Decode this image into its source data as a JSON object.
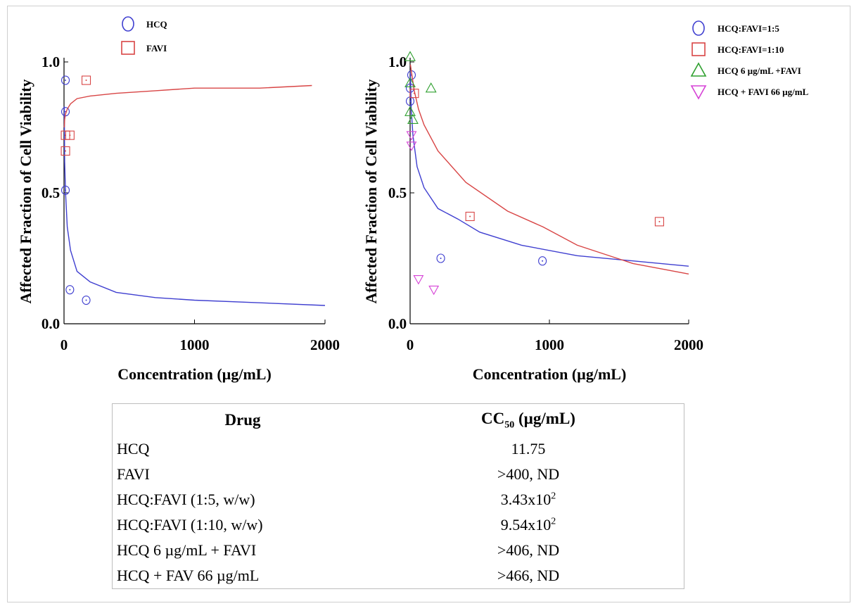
{
  "chart_data": [
    {
      "type": "scatter",
      "xlabel": "Concentration (µg/mL)",
      "ylabel": "Affected Fraction of Cell Viability",
      "xlim": [
        0,
        2000
      ],
      "ylim": [
        0,
        1
      ],
      "x_ticks": [
        "0",
        "1000",
        "2000"
      ],
      "y_ticks": [
        "0.0",
        "0.5",
        "1.0"
      ],
      "legend_position": "top-left",
      "series": [
        {
          "name": "HCQ",
          "marker": "circle",
          "color": "#3f3fd0",
          "points": [
            [
              11,
              0.93
            ],
            [
              11,
              0.81
            ],
            [
              11,
              0.51
            ],
            [
              45,
              0.13
            ],
            [
              170,
              0.09
            ]
          ],
          "fit": [
            [
              2,
              0.83
            ],
            [
              5,
              0.62
            ],
            [
              11.75,
              0.5
            ],
            [
              25,
              0.37
            ],
            [
              50,
              0.28
            ],
            [
              100,
              0.2
            ],
            [
              200,
              0.16
            ],
            [
              400,
              0.12
            ],
            [
              700,
              0.1
            ],
            [
              1000,
              0.09
            ],
            [
              1500,
              0.08
            ],
            [
              2000,
              0.07
            ]
          ]
        },
        {
          "name": "FAVI",
          "marker": "square",
          "color": "#d84545",
          "points": [
            [
              11,
              0.72
            ],
            [
              45,
              0.72
            ],
            [
              11,
              0.66
            ],
            [
              170,
              0.93
            ]
          ],
          "fit": [
            [
              2,
              0.75
            ],
            [
              5,
              0.78
            ],
            [
              11,
              0.8
            ],
            [
              25,
              0.82
            ],
            [
              50,
              0.84
            ],
            [
              100,
              0.86
            ],
            [
              200,
              0.87
            ],
            [
              400,
              0.88
            ],
            [
              700,
              0.89
            ],
            [
              1000,
              0.9
            ],
            [
              1500,
              0.9
            ],
            [
              1900,
              0.91
            ]
          ]
        }
      ]
    },
    {
      "type": "scatter",
      "xlabel": "Concentration (µg/mL)",
      "ylabel": "Affected Fraction of Cell Viability",
      "xlim": [
        0,
        2000
      ],
      "ylim": [
        0,
        1
      ],
      "x_ticks": [
        "0",
        "1000",
        "2000"
      ],
      "y_ticks": [
        "0.0",
        "0.5",
        "1.0"
      ],
      "legend_position": "top-right",
      "series": [
        {
          "name": "HCQ:FAVI=1:5",
          "marker": "circle",
          "color": "#3f3fd0",
          "points": [
            [
              0,
              0.9
            ],
            [
              0,
              0.85
            ],
            [
              10,
              0.95
            ],
            [
              220,
              0.25
            ],
            [
              950,
              0.24
            ]
          ],
          "fit": [
            [
              2,
              0.96
            ],
            [
              8,
              0.82
            ],
            [
              20,
              0.72
            ],
            [
              50,
              0.6
            ],
            [
              100,
              0.52
            ],
            [
              200,
              0.44
            ],
            [
              343,
              0.4
            ],
            [
              500,
              0.35
            ],
            [
              800,
              0.3
            ],
            [
              1200,
              0.26
            ],
            [
              1600,
              0.24
            ],
            [
              2000,
              0.22
            ]
          ]
        },
        {
          "name": "HCQ:FAVI=1:10",
          "marker": "square",
          "color": "#d84545",
          "points": [
            [
              30,
              0.88
            ],
            [
              430,
              0.41
            ],
            [
              1790,
              0.39
            ]
          ],
          "fit": [
            [
              2,
              0.99
            ],
            [
              10,
              0.96
            ],
            [
              30,
              0.89
            ],
            [
              60,
              0.82
            ],
            [
              100,
              0.76
            ],
            [
              200,
              0.66
            ],
            [
              400,
              0.54
            ],
            [
              700,
              0.43
            ],
            [
              954,
              0.37
            ],
            [
              1200,
              0.3
            ],
            [
              1600,
              0.23
            ],
            [
              2000,
              0.19
            ]
          ]
        },
        {
          "name": "HCQ 6 µg/mL +FAVI",
          "marker": "triangle-up",
          "color": "#2fa02f",
          "points": [
            [
              0,
              1.02
            ],
            [
              0,
              0.92
            ],
            [
              0,
              0.81
            ],
            [
              20,
              0.78
            ],
            [
              150,
              0.9
            ]
          ]
        },
        {
          "name": "HCQ + FAVI 66 µg/mL",
          "marker": "triangle-down",
          "color": "#d642d6",
          "points": [
            [
              10,
              0.72
            ],
            [
              10,
              0.68
            ],
            [
              60,
              0.17
            ],
            [
              170,
              0.13
            ]
          ]
        }
      ]
    }
  ],
  "table": {
    "headers": {
      "drug": "Drug",
      "cc50_main": "CC",
      "cc50_sub": "50",
      "cc50_unit": " (µg/mL)"
    },
    "rows": [
      {
        "drug": "HCQ",
        "value": "11.75"
      },
      {
        "drug": "FAVI",
        "value": ">400, ND"
      },
      {
        "drug": "HCQ:FAVI (1:5, w/w)",
        "value": "3.43x10",
        "exp": "2"
      },
      {
        "drug": "HCQ:FAVI (1:10, w/w)",
        "value": "9.54x10",
        "exp": "2"
      },
      {
        "drug": "HCQ 6 µg/mL + FAVI",
        "value": ">406, ND"
      },
      {
        "drug": "HCQ + FAV 66 µg/mL",
        "value": ">466, ND"
      }
    ]
  }
}
